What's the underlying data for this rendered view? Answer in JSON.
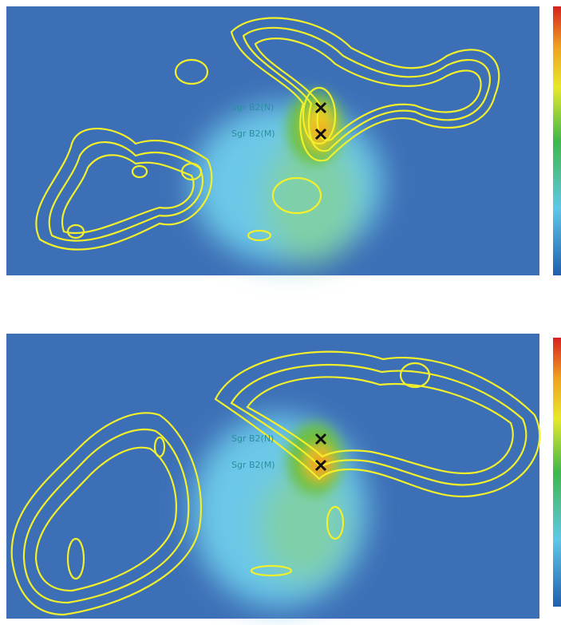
{
  "panels": [
    {
      "labels": [
        "Sgr B2(N)",
        "Sgr B2(M)"
      ]
    },
    {
      "labels": [
        "Sgr B2(N)",
        "Sgr B2(M)"
      ]
    }
  ]
}
